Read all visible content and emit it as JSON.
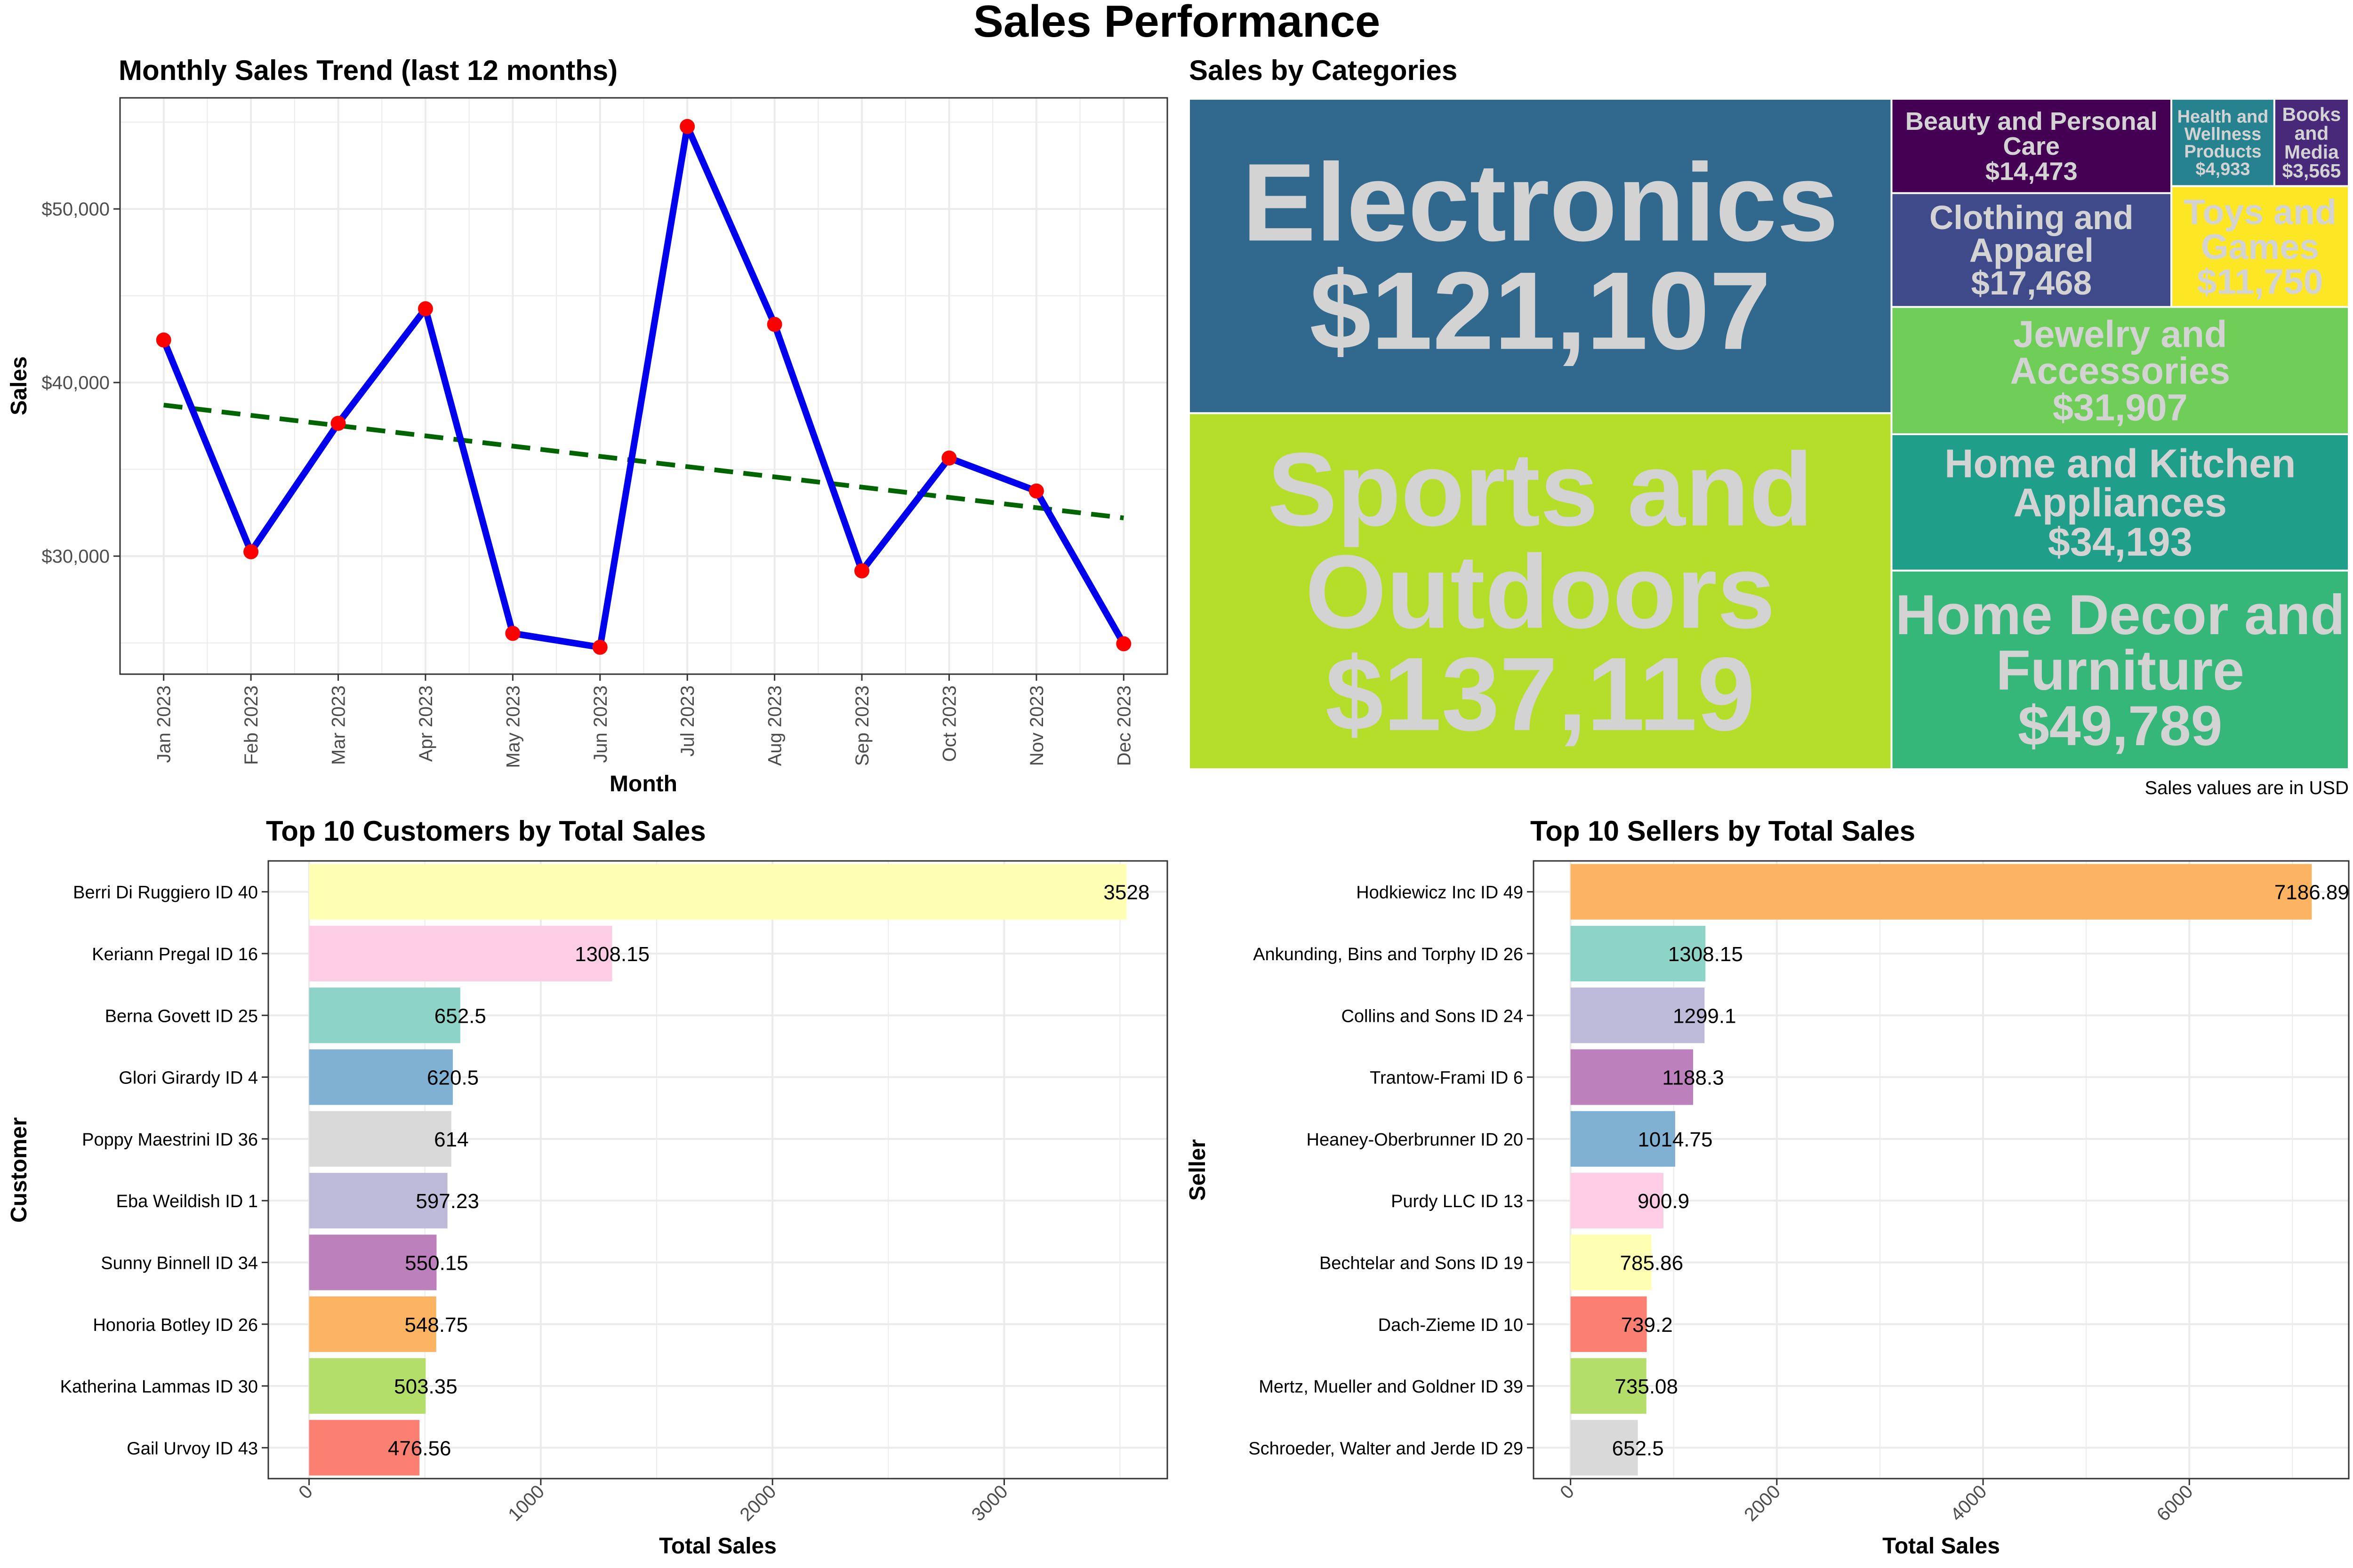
{
  "title": "Sales Performance",
  "colors": {
    "line": "#0000ee",
    "points": "#ff0000",
    "trend": "#006400",
    "treemap_text": "#d3d3d3",
    "grid": "#ebebeb",
    "panel_border": "#333333"
  },
  "chart_data": [
    {
      "type": "line",
      "title": "Monthly Sales Trend (last 12 months)",
      "xlabel": "Month",
      "ylabel": "Sales",
      "categories": [
        "Jan 2023",
        "Feb 2023",
        "Mar 2023",
        "Apr 2023",
        "May 2023",
        "Jun 2023",
        "Jul 2023",
        "Aug 2023",
        "Sep 2023",
        "Oct 2023",
        "Nov 2023",
        "Dec 2023"
      ],
      "values": [
        42450,
        30250,
        37650,
        44250,
        25550,
        24750,
        54750,
        43350,
        29150,
        35650,
        33750,
        24950
      ],
      "trend": {
        "start": 38700,
        "end": 32200,
        "style": "dashed"
      },
      "ylim": [
        23200,
        56400
      ],
      "yticks": [
        30000,
        40000,
        50000
      ],
      "ytick_labels": [
        "$30,000",
        "$40,000",
        "$50,000"
      ],
      "grid": true
    },
    {
      "type": "treemap",
      "title": "Sales by Categories",
      "caption": "Sales values are in USD",
      "items": [
        {
          "name": "Sports and Outdoors",
          "label_lines": [
            "Sports and",
            "Outdoors",
            "$137,119"
          ],
          "value": 137119,
          "color": "#b5de2b"
        },
        {
          "name": "Electronics",
          "label_lines": [
            "Electronics",
            "$121,107"
          ],
          "value": 121107,
          "color": "#31688e"
        },
        {
          "name": "Home Decor and Furniture",
          "label_lines": [
            "Home Decor and",
            "Furniture",
            "$49,789"
          ],
          "value": 49789,
          "color": "#35b779"
        },
        {
          "name": "Home and Kitchen Appliances",
          "label_lines": [
            "Home and Kitchen",
            "Appliances",
            "$34,193"
          ],
          "value": 34193,
          "color": "#1f9e89"
        },
        {
          "name": "Jewelry and Accessories",
          "label_lines": [
            "Jewelry and",
            "Accessories",
            "$31,907"
          ],
          "value": 31907,
          "color": "#6ece58"
        },
        {
          "name": "Clothing and Apparel",
          "label_lines": [
            "Clothing and",
            "Apparel",
            "$17,468"
          ],
          "value": 17468,
          "color": "#3e4a89"
        },
        {
          "name": "Beauty and Personal Care",
          "label_lines": [
            "Beauty and Personal",
            "Care",
            "$14,473"
          ],
          "value": 14473,
          "color": "#440154"
        },
        {
          "name": "Toys and Games",
          "label_lines": [
            "Toys and",
            "Games",
            "$11,750"
          ],
          "value": 11750,
          "color": "#fde725"
        },
        {
          "name": "Health and Wellness Products",
          "label_lines": [
            "Health and",
            "Wellness",
            "Products",
            "$4,933"
          ],
          "value": 4933,
          "color": "#26828e"
        },
        {
          "name": "Books and Media",
          "label_lines": [
            "Books",
            "and",
            "Media",
            "$3,565"
          ],
          "value": 3565,
          "color": "#482878"
        }
      ]
    },
    {
      "type": "bar",
      "orientation": "horizontal",
      "title": "Top 10 Customers by Total Sales",
      "xlabel": "Total Sales",
      "ylabel": "Customer",
      "categories": [
        "Berri Di Ruggiero ID 40",
        "Keriann Pregal ID 16",
        "Berna Govett ID 25",
        "Glori Girardy ID 4",
        "Poppy Maestrini ID 36",
        "Eba Weildish ID 1",
        "Sunny Binnell ID 34",
        "Honoria Botley ID 26",
        "Katherina Lammas ID 30",
        "Gail Urvoy ID 43"
      ],
      "values": [
        3528,
        1308.15,
        652.5,
        620.5,
        614,
        597.23,
        550.15,
        548.75,
        503.35,
        476.56
      ],
      "value_labels": [
        "3528",
        "1308.15",
        "652.5",
        "620.5",
        "614",
        "597.23",
        "550.15",
        "548.75",
        "503.35",
        "476.56"
      ],
      "colors": [
        "#ffffb3",
        "#fccde5",
        "#8dd3c7",
        "#80b1d3",
        "#d9d9d9",
        "#bebada",
        "#bc80bd",
        "#fdb462",
        "#b3de69",
        "#fb8072"
      ],
      "xlim": [
        -176,
        3704
      ],
      "xticks": [
        0,
        1000,
        2000,
        3000
      ],
      "grid": true
    },
    {
      "type": "bar",
      "orientation": "horizontal",
      "title": "Top 10 Sellers by Total Sales",
      "xlabel": "Total Sales",
      "ylabel": "Seller",
      "categories": [
        "Hodkiewicz Inc ID 49",
        "Ankunding, Bins and Torphy ID 26",
        "Collins and Sons ID 24",
        "Trantow-Frami ID 6",
        "Heaney-Oberbrunner ID 20",
        "Purdy LLC ID 13",
        "Bechtelar and Sons ID 19",
        "Dach-Zieme ID 10",
        "Mertz, Mueller and Goldner ID 39",
        "Schroeder, Walter and Jerde ID 29"
      ],
      "values": [
        7186.89,
        1308.15,
        1299.1,
        1188.3,
        1014.75,
        900.9,
        785.86,
        739.2,
        735.08,
        652.5
      ],
      "value_labels": [
        "7186.89",
        "1308.15",
        "1299.1",
        "1188.3",
        "1014.75",
        "900.9",
        "785.86",
        "739.2",
        "735.08",
        "652.5"
      ],
      "colors": [
        "#fdb462",
        "#8dd3c7",
        "#bebada",
        "#bc80bd",
        "#80b1d3",
        "#fccde5",
        "#ffffb3",
        "#fb8072",
        "#b3de69",
        "#d9d9d9"
      ],
      "xlim": [
        -359,
        7546
      ],
      "xticks": [
        0,
        2000,
        4000,
        6000
      ],
      "grid": true
    }
  ]
}
